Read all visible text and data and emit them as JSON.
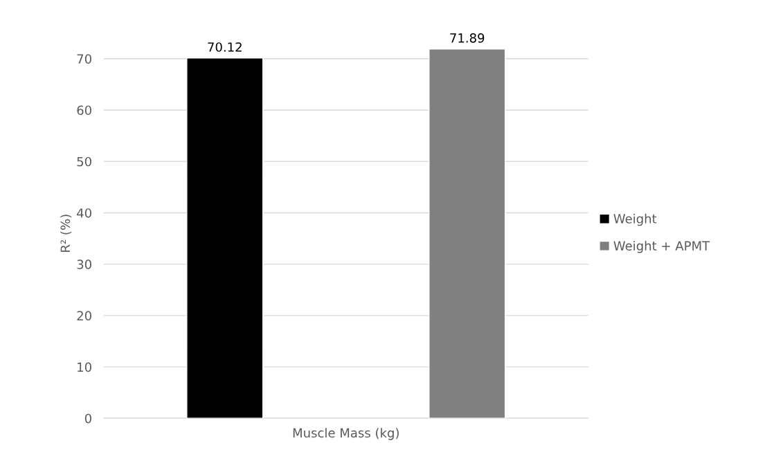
{
  "chart_data": {
    "type": "bar",
    "ylabel": "R² (%)",
    "categories": [
      "Muscle Mass (kg)"
    ],
    "series": [
      {
        "name": "Weight",
        "color": "#000000",
        "values": [
          70.12
        ]
      },
      {
        "name": "Weight + APMT",
        "color": "#808080",
        "values": [
          71.89
        ]
      }
    ],
    "ylim": [
      0,
      72
    ],
    "yticks": [
      0,
      10,
      20,
      30,
      40,
      50,
      60,
      70
    ],
    "grid": "y",
    "legend": "right",
    "data_labels": true
  }
}
